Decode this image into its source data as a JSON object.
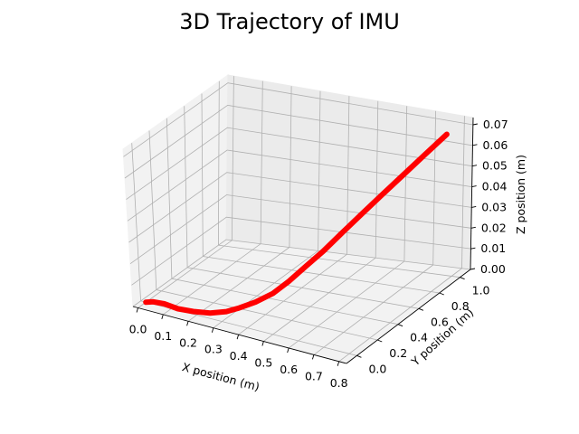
{
  "chart_data": {
    "type": "line",
    "projection": "3d",
    "title": "3D Trajectory of IMU",
    "xlabel": "X position (m)",
    "ylabel": "Y position (m)",
    "zlabel": "Z position (m)",
    "xlim": [
      -0.02,
      0.83
    ],
    "ylim": [
      -0.1,
      1.1
    ],
    "zlim": [
      0.0,
      0.0735
    ],
    "xticks": [
      "0.0",
      "0.1",
      "0.2",
      "0.3",
      "0.4",
      "0.5",
      "0.6",
      "0.7",
      "0.8"
    ],
    "yticks": [
      "0.0",
      "0.2",
      "0.4",
      "0.6",
      "0.8",
      "1.0"
    ],
    "zticks": [
      "0.00",
      "0.01",
      "0.02",
      "0.03",
      "0.04",
      "0.05",
      "0.06",
      "0.07"
    ],
    "grid": true,
    "series": [
      {
        "color": "#ff0000",
        "points": [
          {
            "x": 0.0,
            "y": 0.0,
            "z": 0.0
          },
          {
            "x": 0.02,
            "y": 0.03,
            "z": 0.0
          },
          {
            "x": 0.06,
            "y": 0.04,
            "z": 0.0
          },
          {
            "x": 0.12,
            "y": 0.02,
            "z": 0.0
          },
          {
            "x": 0.18,
            "y": 0.02,
            "z": 0.0005
          },
          {
            "x": 0.24,
            "y": 0.04,
            "z": 0.001
          },
          {
            "x": 0.29,
            "y": 0.08,
            "z": 0.002
          },
          {
            "x": 0.33,
            "y": 0.11,
            "z": 0.004
          },
          {
            "x": 0.38,
            "y": 0.15,
            "z": 0.007
          },
          {
            "x": 0.43,
            "y": 0.2,
            "z": 0.011
          },
          {
            "x": 0.47,
            "y": 0.26,
            "z": 0.016
          },
          {
            "x": 0.51,
            "y": 0.33,
            "z": 0.022
          },
          {
            "x": 0.55,
            "y": 0.4,
            "z": 0.028
          },
          {
            "x": 0.59,
            "y": 0.48,
            "z": 0.035
          },
          {
            "x": 0.63,
            "y": 0.57,
            "z": 0.042
          },
          {
            "x": 0.67,
            "y": 0.66,
            "z": 0.049
          },
          {
            "x": 0.71,
            "y": 0.76,
            "z": 0.056
          },
          {
            "x": 0.75,
            "y": 0.86,
            "z": 0.063
          },
          {
            "x": 0.79,
            "y": 0.96,
            "z": 0.07
          }
        ]
      }
    ]
  }
}
